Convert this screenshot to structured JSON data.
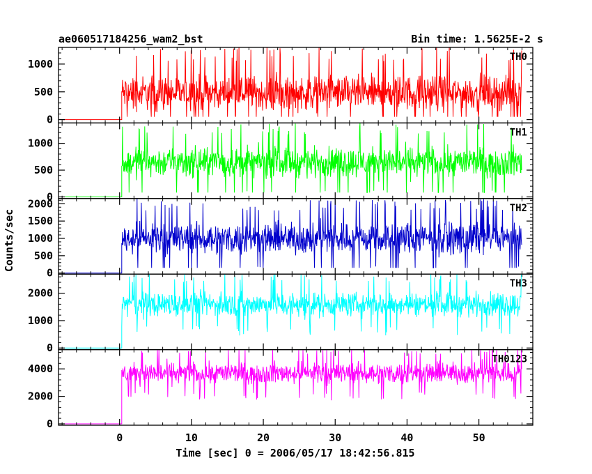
{
  "chart_data": {
    "type": "line",
    "title": "ae060517184256_wam2_bst",
    "subtitle": "Bin time: 1.5625E-2 s",
    "xlabel": "Time [sec] 0 = 2006/05/17 18:42:56.815",
    "ylabel": "Counts/sec",
    "xlim": [
      -8.5,
      57.5
    ],
    "x_ticks": [
      0,
      10,
      20,
      30,
      40,
      50
    ],
    "grid": false,
    "legend": "panel labels at top-right of each panel",
    "bin_time": 0.015625,
    "panels": [
      {
        "name": "TH0",
        "color": "#ff0000",
        "ylim": [
          -60,
          1300
        ],
        "y_ticks": [
          0,
          500,
          1000
        ],
        "pre_level": 0,
        "step_time": 0.3,
        "end_time": 56.0,
        "mean": 480,
        "range": [
          50,
          1300
        ]
      },
      {
        "name": "TH1",
        "color": "#00ff00",
        "ylim": [
          -30,
          1380
        ],
        "y_ticks": [
          0,
          500,
          1000
        ],
        "pre_level": 0,
        "step_time": 0.3,
        "end_time": 56.0,
        "mean": 650,
        "range": [
          80,
          1380
        ]
      },
      {
        "name": "TH2",
        "color": "#0000cc",
        "ylim": [
          -30,
          2150
        ],
        "y_ticks": [
          0,
          500,
          1000,
          1500,
          2000
        ],
        "pre_level": 0,
        "step_time": 0.3,
        "end_time": 56.0,
        "mean": 1000,
        "range": [
          150,
          2150
        ]
      },
      {
        "name": "TH3",
        "color": "#00ffff",
        "ylim": [
          -60,
          2700
        ],
        "y_ticks": [
          0,
          1000,
          2000
        ],
        "pre_level": 0,
        "step_time": 0.3,
        "end_time": 56.0,
        "mean": 1600,
        "range": [
          450,
          2700
        ]
      },
      {
        "name": "TH0123",
        "color": "#ff00ff",
        "ylim": [
          -100,
          5400
        ],
        "y_ticks": [
          0,
          2000,
          4000
        ],
        "pre_level": 0,
        "step_time": 0.3,
        "end_time": 56.0,
        "mean": 3700,
        "range": [
          1700,
          5400
        ]
      }
    ]
  }
}
